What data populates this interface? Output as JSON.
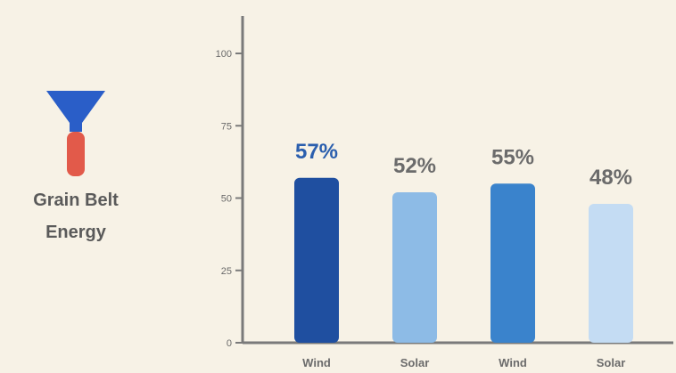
{
  "legend": {
    "line1": "Grain Belt",
    "line2": "Energy",
    "icon": "tower-funnel-icon"
  },
  "colors": {
    "background": "#f7f2e6",
    "axis": "#7a7a7a",
    "highlight_label": "#2b5fae",
    "label": "#6b6b6b",
    "icon_top": "#2a5ec8",
    "icon_bottom": "#e25a4a"
  },
  "chart_data": {
    "type": "bar",
    "title": "",
    "xlabel": "",
    "ylabel": "",
    "ylim": [
      0,
      100
    ],
    "yticks": [
      0,
      25,
      50,
      75,
      100
    ],
    "grid": false,
    "categories": [
      "Wind",
      "Solar",
      "Wind",
      "Solar"
    ],
    "values": [
      57,
      52,
      55,
      48
    ],
    "data_labels": [
      "57%",
      "52%",
      "55%",
      "48%"
    ],
    "bar_colors": [
      "#1f4fa0",
      "#8dbbe6",
      "#3a83cc",
      "#c4dcf3"
    ]
  }
}
